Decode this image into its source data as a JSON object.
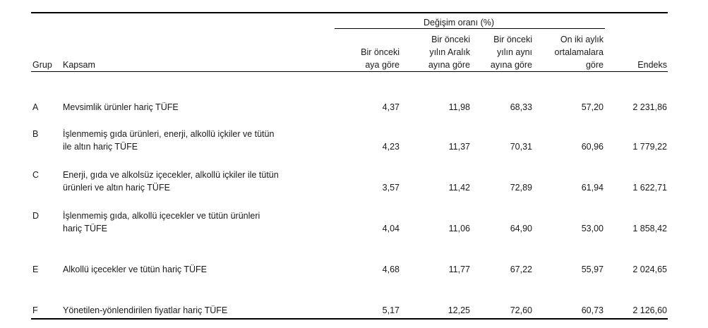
{
  "table": {
    "group_header": "Değişim oranı (%)",
    "col_grup": "Grup",
    "col_kapsam": "Kapsam",
    "col_monthly": [
      "Bir önceki",
      "aya göre"
    ],
    "col_december": [
      "Bir önceki",
      "yılın Aralık",
      "ayına göre"
    ],
    "col_same_month": [
      "Bir önceki",
      "yılın aynı",
      "ayına göre"
    ],
    "col_twelve": [
      "On iki aylık",
      "ortalamalara",
      "göre"
    ],
    "col_endeks": "Endeks",
    "rows": [
      {
        "grup": "A",
        "kapsam": [
          "Mevsimlik ürünler hariç TÜFE"
        ],
        "monthly": "4,37",
        "december": "11,98",
        "same_month": "68,33",
        "twelve": "57,20",
        "endeks": "2 231,86"
      },
      {
        "grup": "B",
        "kapsam": [
          "İşlenmemiş gıda ürünleri, enerji, alkollü içkiler ve tütün",
          "ile altın hariç TÜFE"
        ],
        "monthly": "4,23",
        "december": "11,37",
        "same_month": "70,31",
        "twelve": "60,96",
        "endeks": "1 779,22"
      },
      {
        "grup": "C",
        "kapsam": [
          "Enerji, gıda ve alkolsüz içecekler, alkollü içkiler ile tütün",
          "ürünleri ve altın hariç TÜFE"
        ],
        "monthly": "3,57",
        "december": "11,42",
        "same_month": "72,89",
        "twelve": "61,94",
        "endeks": "1 622,71"
      },
      {
        "grup": "D",
        "kapsam": [
          "İşlenmemiş gıda, alkollü içecekler ve tütün ürünleri",
          "hariç TÜFE"
        ],
        "monthly": "4,04",
        "december": "11,06",
        "same_month": "64,90",
        "twelve": "53,00",
        "endeks": "1 858,42"
      },
      {
        "grup": "E",
        "kapsam": [
          "Alkollü içecekler ve tütün hariç TÜFE"
        ],
        "monthly": "4,68",
        "december": "11,77",
        "same_month": "67,22",
        "twelve": "55,97",
        "endeks": "2 024,65"
      },
      {
        "grup": "F",
        "kapsam": [
          "Yönetilen-yönlendirilen fiyatlar hariç TÜFE"
        ],
        "monthly": "5,17",
        "december": "12,25",
        "same_month": "72,60",
        "twelve": "60,73",
        "endeks": "2 126,60"
      }
    ]
  }
}
